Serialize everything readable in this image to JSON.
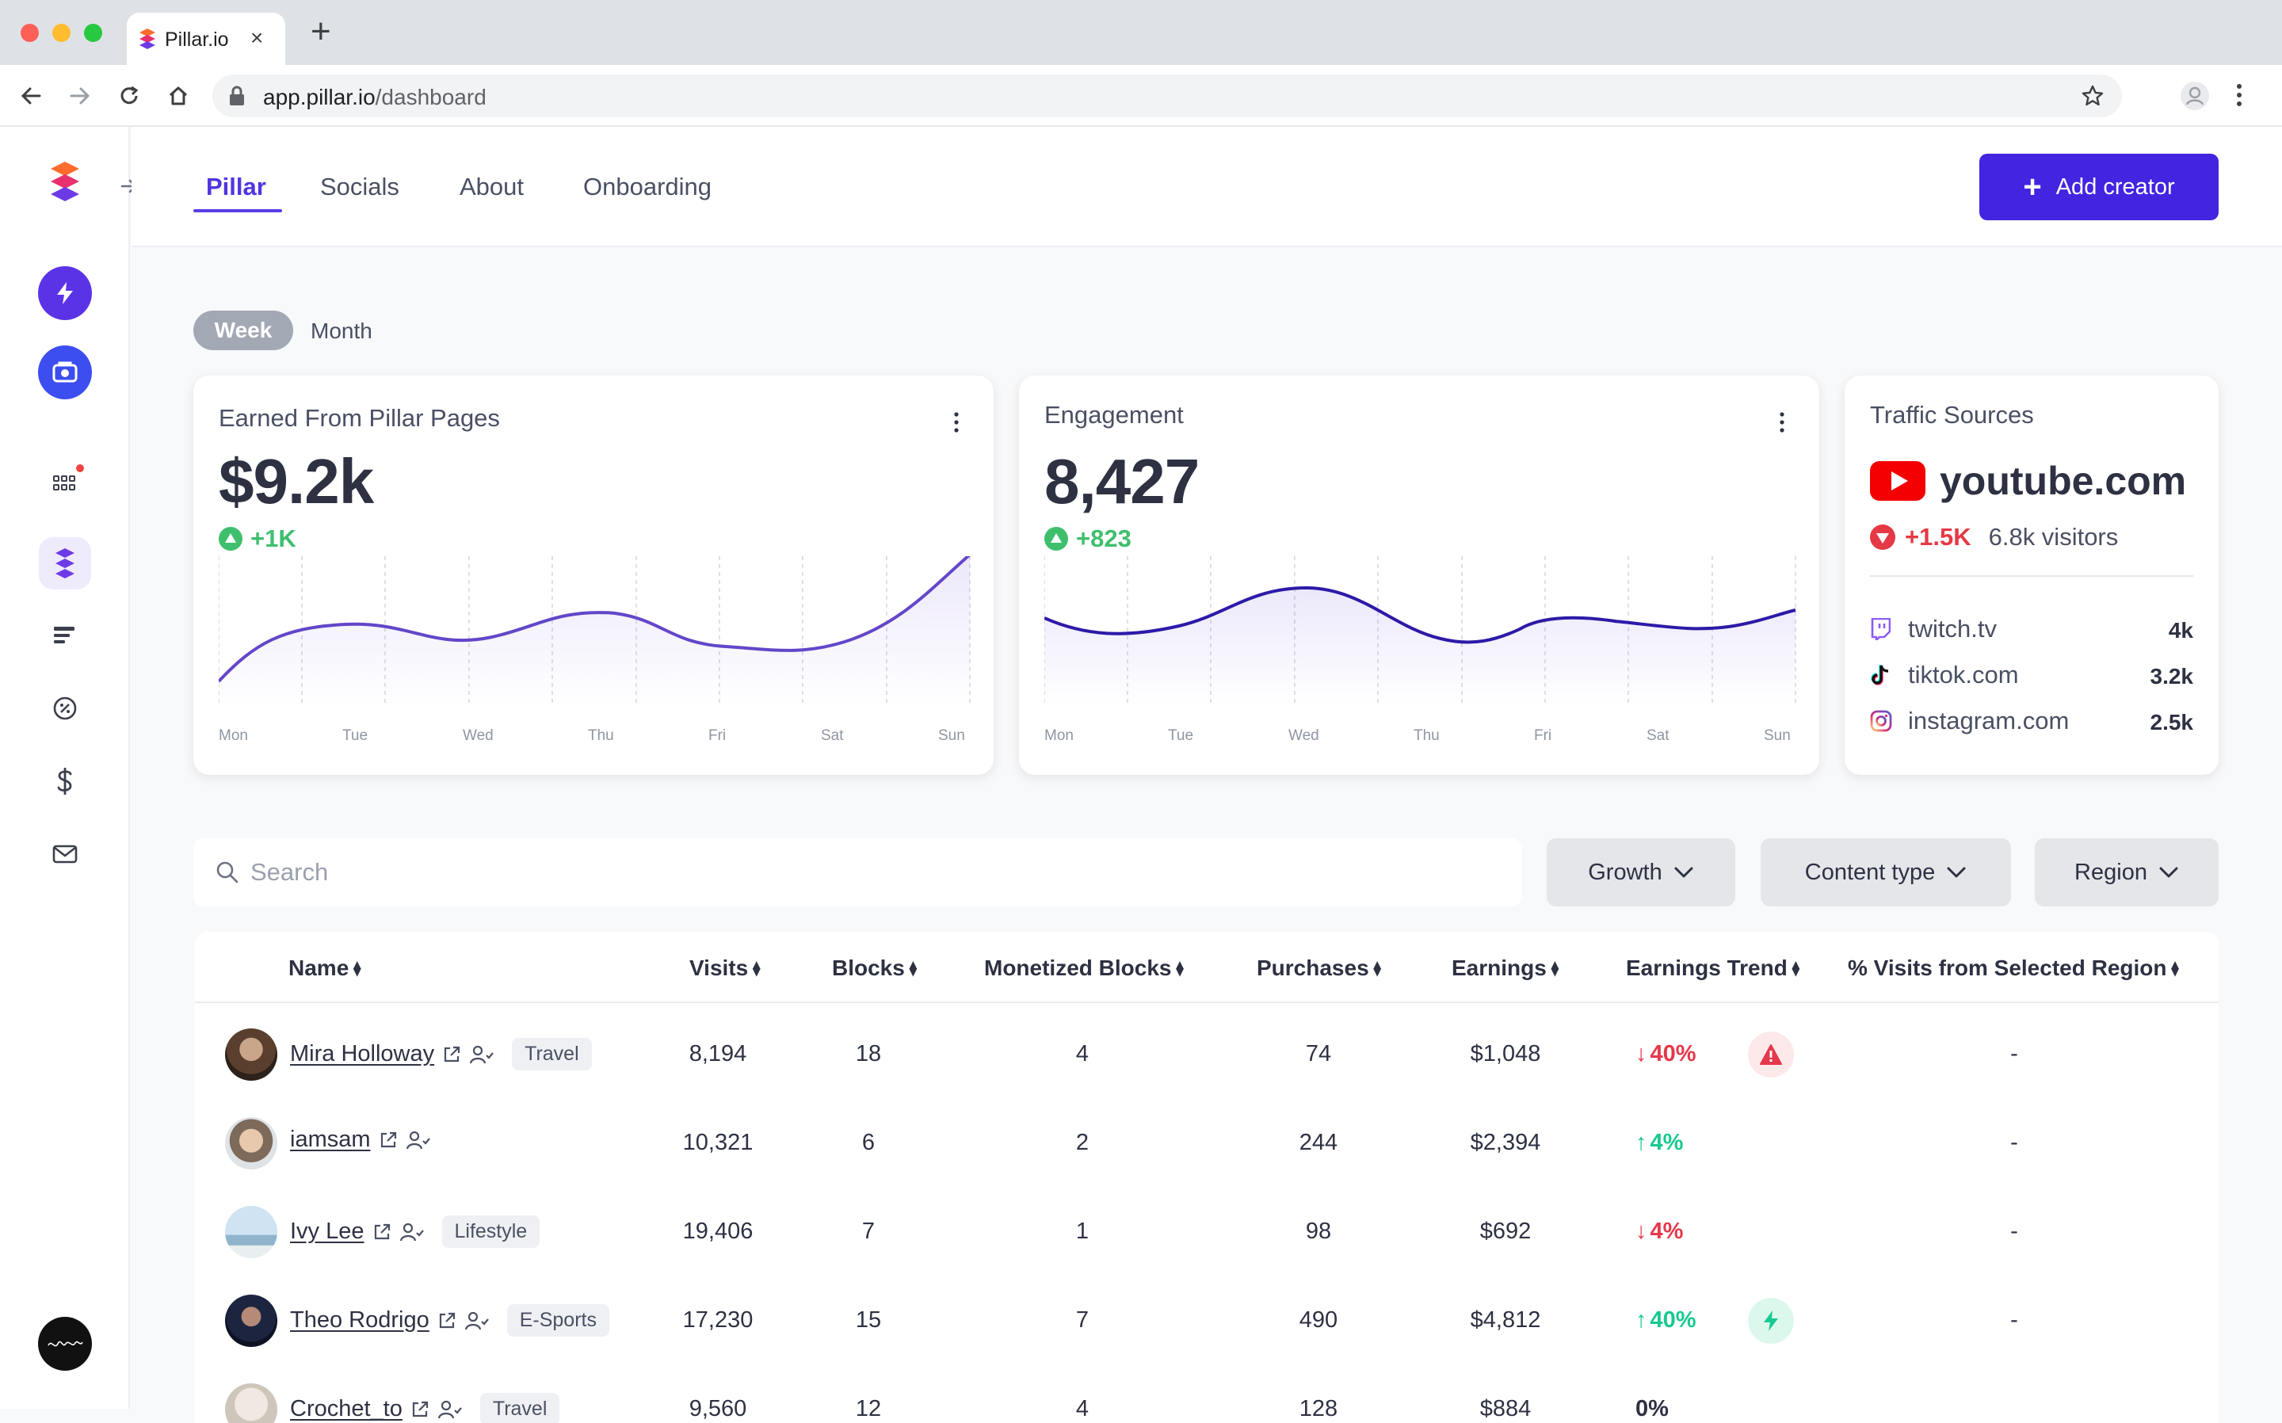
{
  "browser": {
    "tab_title": "Pillar.io",
    "url_host": "app.pillar.io",
    "url_path": "/dashboard"
  },
  "nav": {
    "tabs": [
      "Pillar",
      "Socials",
      "About",
      "Onboarding"
    ],
    "active_tab": "Pillar",
    "add_creator_label": "Add creator"
  },
  "period": {
    "options": [
      "Week",
      "Month"
    ],
    "selected": "Week"
  },
  "cards": {
    "earned": {
      "title": "Earned From Pillar Pages",
      "value": "$9.2k",
      "delta": "+1K",
      "days": [
        "Mon",
        "Tue",
        "Wed",
        "Thu",
        "Fri",
        "Sat",
        "Sun"
      ]
    },
    "engagement": {
      "title": "Engagement",
      "value": "8,427",
      "delta": "+823",
      "days": [
        "Mon",
        "Tue",
        "Wed",
        "Thu",
        "Fri",
        "Sat",
        "Sun"
      ]
    },
    "traffic": {
      "title": "Traffic Sources",
      "top_source": "youtube.com",
      "top_delta": "+1.5K",
      "top_visitors": "6.8k visitors",
      "sources": [
        {
          "name": "twitch.tv",
          "value": "4k",
          "icon": "twitch-icon"
        },
        {
          "name": "tiktok.com",
          "value": "3.2k",
          "icon": "tiktok-icon"
        },
        {
          "name": "instagram.com",
          "value": "2.5k",
          "icon": "instagram-icon"
        }
      ]
    }
  },
  "filters": {
    "search_placeholder": "Search",
    "growth": "Growth",
    "content_type": "Content type",
    "region": "Region"
  },
  "table": {
    "columns": [
      "Name",
      "Visits",
      "Blocks",
      "Monetized Blocks",
      "Purchases",
      "Earnings",
      "Earnings Trend",
      "% Visits from Selected Region"
    ],
    "rows": [
      {
        "name": "Mira Holloway",
        "tag": "Travel",
        "visits": "8,194",
        "blocks": "18",
        "monetized": "4",
        "purchases": "74",
        "earnings": "$1,048",
        "trend": "40%",
        "trend_dir": "down",
        "alert": "warning",
        "region_pct": "-"
      },
      {
        "name": "iamsam",
        "tag": "",
        "visits": "10,321",
        "blocks": "6",
        "monetized": "2",
        "purchases": "244",
        "earnings": "$2,394",
        "trend": "4%",
        "trend_dir": "up",
        "alert": "",
        "region_pct": "-"
      },
      {
        "name": "Ivy Lee",
        "tag": "Lifestyle",
        "visits": "19,406",
        "blocks": "7",
        "monetized": "1",
        "purchases": "98",
        "earnings": "$692",
        "trend": "4%",
        "trend_dir": "down",
        "alert": "",
        "region_pct": "-"
      },
      {
        "name": "Theo Rodrigo",
        "tag": "E-Sports",
        "visits": "17,230",
        "blocks": "15",
        "monetized": "7",
        "purchases": "490",
        "earnings": "$4,812",
        "trend": "40%",
        "trend_dir": "up",
        "alert": "bolt",
        "region_pct": "-"
      },
      {
        "name": "Crochet_to",
        "tag": "Travel",
        "visits": "9,560",
        "blocks": "12",
        "monetized": "4",
        "purchases": "128",
        "earnings": "$884",
        "trend": "0%",
        "trend_dir": "flat",
        "alert": "",
        "region_pct": ""
      }
    ]
  },
  "colors": {
    "accent": "#4324e0",
    "up": "#17c990",
    "down": "#e5384a",
    "delta_green": "#3fbf6e"
  }
}
